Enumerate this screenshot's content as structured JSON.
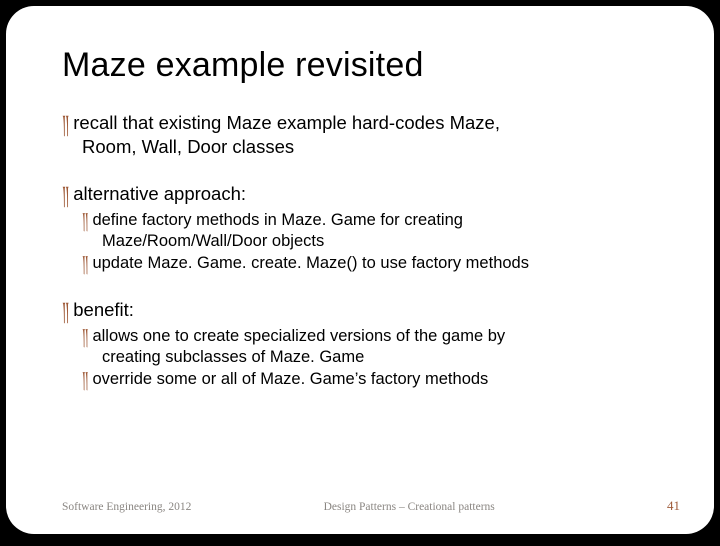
{
  "title": "Maze example revisited",
  "bullets": {
    "b1": "recall that existing Maze example hard-codes Maze,",
    "b1_cont": "Room, Wall, Door classes",
    "b2": "alternative approach:",
    "b2_s1": "define factory methods in Maze. Game for creating",
    "b2_s1_cont": "Maze/Room/Wall/Door objects",
    "b2_s2": "update Maze. Game. create. Maze() to use factory methods",
    "b3": "benefit:",
    "b3_s1": "allows one to create specialized versions of the game by",
    "b3_s1_cont": "creating subclasses of Maze. Game",
    "b3_s2": "override some or all of Maze. Game’s factory methods"
  },
  "glyphs": {
    "lvl1": "༎"
  },
  "footer": {
    "left": "Software Engineering, 2012",
    "center": "Design Patterns – Creational patterns",
    "page": "41"
  }
}
